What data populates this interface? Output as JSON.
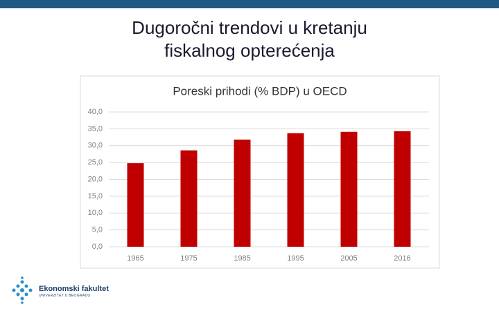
{
  "slide": {
    "title": "Dugoročni trendovi u kretanju fiskalnog opterećenja",
    "logo_name": "Ekonomski fakultet",
    "logo_subtitle": "UNIVERZITET U BEOGRADU"
  },
  "chart_data": {
    "type": "bar",
    "title": "Poreski prihodi (% BDP) u OECD",
    "categories": [
      "1965",
      "1975",
      "1985",
      "1995",
      "2005",
      "2016"
    ],
    "values": [
      24.8,
      28.6,
      31.8,
      33.7,
      34.1,
      34.3
    ],
    "color": "#c00000",
    "ylim": [
      0,
      40
    ],
    "yticks": [
      {
        "value": 0,
        "label": "0,0"
      },
      {
        "value": 5,
        "label": "5,0"
      },
      {
        "value": 10,
        "label": "10,0"
      },
      {
        "value": 15,
        "label": "15,0"
      },
      {
        "value": 20,
        "label": "20,0"
      },
      {
        "value": 25,
        "label": "25,0"
      },
      {
        "value": 30,
        "label": "30,0"
      },
      {
        "value": 35,
        "label": "35,0"
      },
      {
        "value": 40,
        "label": "40,0"
      }
    ],
    "grid": true
  }
}
